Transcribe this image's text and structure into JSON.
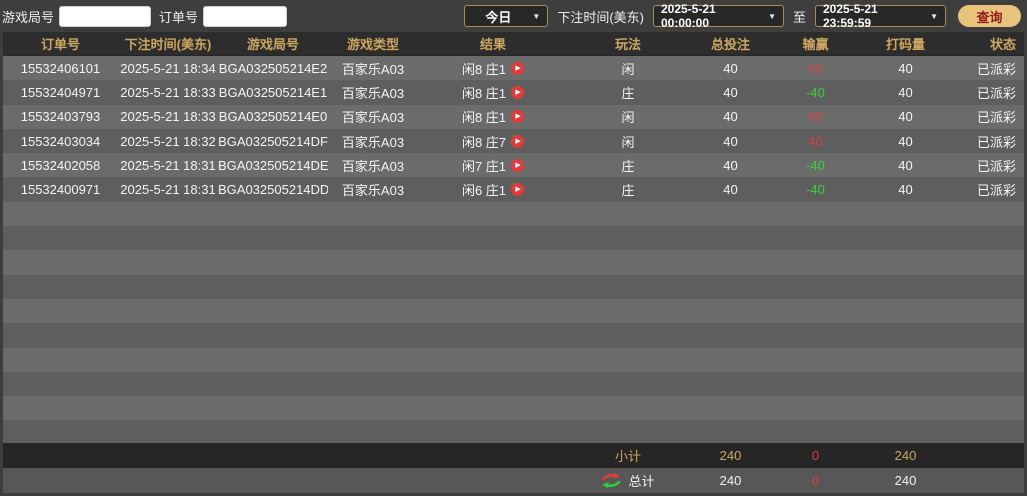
{
  "toolbar": {
    "game_round_label": "游戏局号",
    "order_label": "订单号",
    "game_round_value": "",
    "order_value": "",
    "period_selected": "今日",
    "bet_time_label": "下注时间(美东)",
    "time_from": "2025-5-21 00:00:00",
    "to_label": "至",
    "time_to": "2025-5-21 23:59:59",
    "query_label": "查询"
  },
  "icons": {
    "chevron_down": "▼",
    "play": "▶"
  },
  "table": {
    "headers": [
      "订单号",
      "下注时间(美东)",
      "游戏局号",
      "游戏类型",
      "结果",
      "玩法",
      "总投注",
      "输赢",
      "打码量",
      "状态"
    ],
    "rows": [
      {
        "order_id": "15532406101",
        "bet_time": "2025-5-21 18:34",
        "round_id": "BGA032505214E2",
        "game_type": "百家乐A03",
        "result": "闲8 庄1",
        "play": "闲",
        "total_bet": "40",
        "win_loss": "40",
        "win_loss_color": "red",
        "turnover": "40",
        "status": "已派彩"
      },
      {
        "order_id": "15532404971",
        "bet_time": "2025-5-21 18:33",
        "round_id": "BGA032505214E1",
        "game_type": "百家乐A03",
        "result": "闲8 庄1",
        "play": "庄",
        "total_bet": "40",
        "win_loss": "-40",
        "win_loss_color": "green",
        "turnover": "40",
        "status": "已派彩"
      },
      {
        "order_id": "15532403793",
        "bet_time": "2025-5-21 18:33",
        "round_id": "BGA032505214E0",
        "game_type": "百家乐A03",
        "result": "闲8 庄1",
        "play": "闲",
        "total_bet": "40",
        "win_loss": "40",
        "win_loss_color": "red",
        "turnover": "40",
        "status": "已派彩"
      },
      {
        "order_id": "15532403034",
        "bet_time": "2025-5-21 18:32",
        "round_id": "BGA032505214DF",
        "game_type": "百家乐A03",
        "result": "闲8 庄7",
        "play": "闲",
        "total_bet": "40",
        "win_loss": "40",
        "win_loss_color": "red",
        "turnover": "40",
        "status": "已派彩"
      },
      {
        "order_id": "15532402058",
        "bet_time": "2025-5-21 18:31",
        "round_id": "BGA032505214DE",
        "game_type": "百家乐A03",
        "result": "闲7 庄1",
        "play": "庄",
        "total_bet": "40",
        "win_loss": "-40",
        "win_loss_color": "green",
        "turnover": "40",
        "status": "已派彩"
      },
      {
        "order_id": "15532400971",
        "bet_time": "2025-5-21 18:31",
        "round_id": "BGA032505214DD",
        "game_type": "百家乐A03",
        "result": "闲6 庄1",
        "play": "庄",
        "total_bet": "40",
        "win_loss": "-40",
        "win_loss_color": "green",
        "turnover": "40",
        "status": "已派彩"
      }
    ],
    "empty_row_count": 10,
    "subtotal": {
      "label": "小计",
      "total_bet": "240",
      "win_loss": "0",
      "turnover": "240"
    },
    "grand_total": {
      "label": "总计",
      "total_bet": "240",
      "win_loss": "0",
      "turnover": "240"
    }
  },
  "colors": {
    "accent_gold": "#cda75f",
    "positive_red": "#d84040",
    "negative_green": "#35d43a",
    "query_button_bg": "#e9c37c",
    "query_button_text": "#8f1d1d",
    "play_badge": "#e23b3b"
  }
}
